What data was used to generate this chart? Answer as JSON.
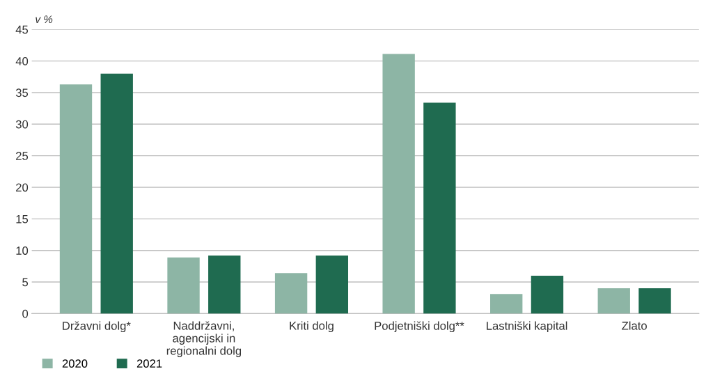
{
  "chart_data": {
    "type": "bar",
    "ylabel": "v %",
    "categories": [
      "Državni dolg*",
      "Naddržavni,\nagencijski in\nregionalni dolg",
      "Kriti dolg",
      "Podjetniški dolg**",
      "Lastniški kapital",
      "Zlato"
    ],
    "series": [
      {
        "name": "2020",
        "color": "#8db5a5",
        "values": [
          36.3,
          8.9,
          6.4,
          41.1,
          3.1,
          4.0
        ]
      },
      {
        "name": "2021",
        "color": "#1f6b50",
        "values": [
          38.0,
          9.2,
          9.2,
          33.4,
          6.0,
          4.0
        ]
      }
    ],
    "ylim": [
      0,
      45
    ],
    "yticks": [
      0,
      5,
      10,
      15,
      20,
      25,
      30,
      35,
      40,
      45
    ],
    "grid": "y",
    "legend": "bottom left"
  }
}
